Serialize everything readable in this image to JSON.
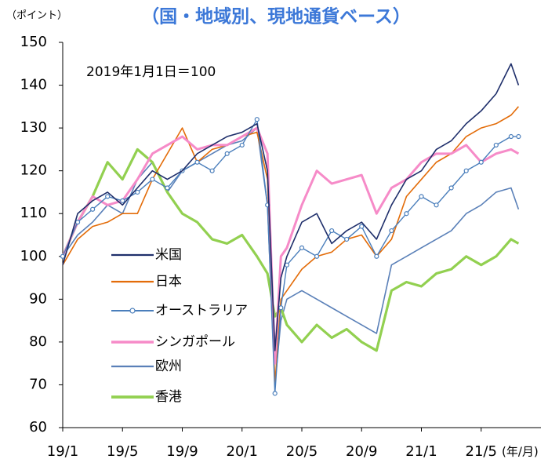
{
  "chart_data": {
    "type": "line",
    "title": "（国・地域別、現地通貨ベース）",
    "y_label": "（ポイント）",
    "x_label": "(年/月)",
    "annotation": "2019年1月1日＝100",
    "x": [
      0,
      1,
      2,
      3,
      4,
      5,
      6,
      7,
      8,
      9,
      10,
      11,
      12,
      13,
      13.7,
      14.2,
      14.6,
      15,
      16,
      17,
      18,
      19,
      20,
      21,
      22,
      23,
      24,
      25,
      26,
      27,
      28,
      29,
      30,
      30.5
    ],
    "xlim": [
      0,
      32
    ],
    "xticks": [
      {
        "value": 0,
        "label": "19/1"
      },
      {
        "value": 4,
        "label": "19/5"
      },
      {
        "value": 8,
        "label": "19/9"
      },
      {
        "value": 12,
        "label": "20/1"
      },
      {
        "value": 16,
        "label": "20/5"
      },
      {
        "value": 20,
        "label": "20/9"
      },
      {
        "value": 24,
        "label": "21/1"
      },
      {
        "value": 28,
        "label": "21/5"
      }
    ],
    "ylim": [
      60,
      150
    ],
    "yticks": [
      60,
      70,
      80,
      90,
      100,
      110,
      120,
      130,
      140,
      150
    ],
    "legend": "left",
    "series": [
      {
        "name": "米国",
        "color": "#1f2f6b",
        "values": [
          98,
          110,
          113,
          115,
          112,
          116,
          120,
          118,
          120,
          124,
          126,
          128,
          129,
          131,
          120,
          78,
          95,
          100,
          108,
          110,
          103,
          106,
          108,
          104,
          112,
          118,
          120,
          125,
          127,
          131,
          134,
          138,
          145,
          140
        ]
      },
      {
        "name": "日本",
        "color": "#e36c09",
        "values": [
          98,
          104,
          107,
          108,
          110,
          110,
          118,
          124,
          130,
          122,
          125,
          126,
          128,
          129,
          118,
          70,
          90,
          92,
          97,
          100,
          101,
          104,
          105,
          100,
          104,
          114,
          118,
          122,
          124,
          128,
          130,
          131,
          133,
          135
        ]
      },
      {
        "name": "オーストラリア",
        "color": "#4a7ebb",
        "marker": "circle",
        "values": [
          100,
          108,
          111,
          114,
          113,
          115,
          118,
          116,
          120,
          122,
          120,
          124,
          126,
          132,
          112,
          68,
          88,
          98,
          102,
          100,
          106,
          104,
          107,
          100,
          106,
          110,
          114,
          112,
          116,
          120,
          122,
          126,
          128,
          128
        ]
      },
      {
        "name": "シンガポール",
        "color": "#f68bc8",
        "values": [
          100,
          108,
          114,
          112,
          113,
          118,
          124,
          126,
          128,
          125,
          126,
          126,
          128,
          130,
          124,
          75,
          100,
          102,
          112,
          120,
          117,
          118,
          119,
          110,
          116,
          118,
          122,
          124,
          124,
          126,
          122,
          124,
          125,
          124
        ]
      },
      {
        "name": "欧州",
        "color": "#5a80b8",
        "values": [
          100,
          105,
          108,
          112,
          110,
          118,
          122,
          115,
          120,
          122,
          124,
          126,
          127,
          130,
          112,
          70,
          85,
          90,
          92,
          90,
          88,
          86,
          84,
          82,
          98,
          100,
          102,
          104,
          106,
          110,
          112,
          115,
          116,
          111
        ]
      },
      {
        "name": "香港",
        "color": "#92d050",
        "values": [
          100,
          108,
          114,
          122,
          118,
          125,
          122,
          115,
          110,
          108,
          104,
          103,
          105,
          100,
          96,
          86,
          88,
          84,
          80,
          84,
          81,
          83,
          80,
          78,
          92,
          94,
          93,
          96,
          97,
          100,
          98,
          100,
          104,
          103
        ]
      }
    ]
  }
}
